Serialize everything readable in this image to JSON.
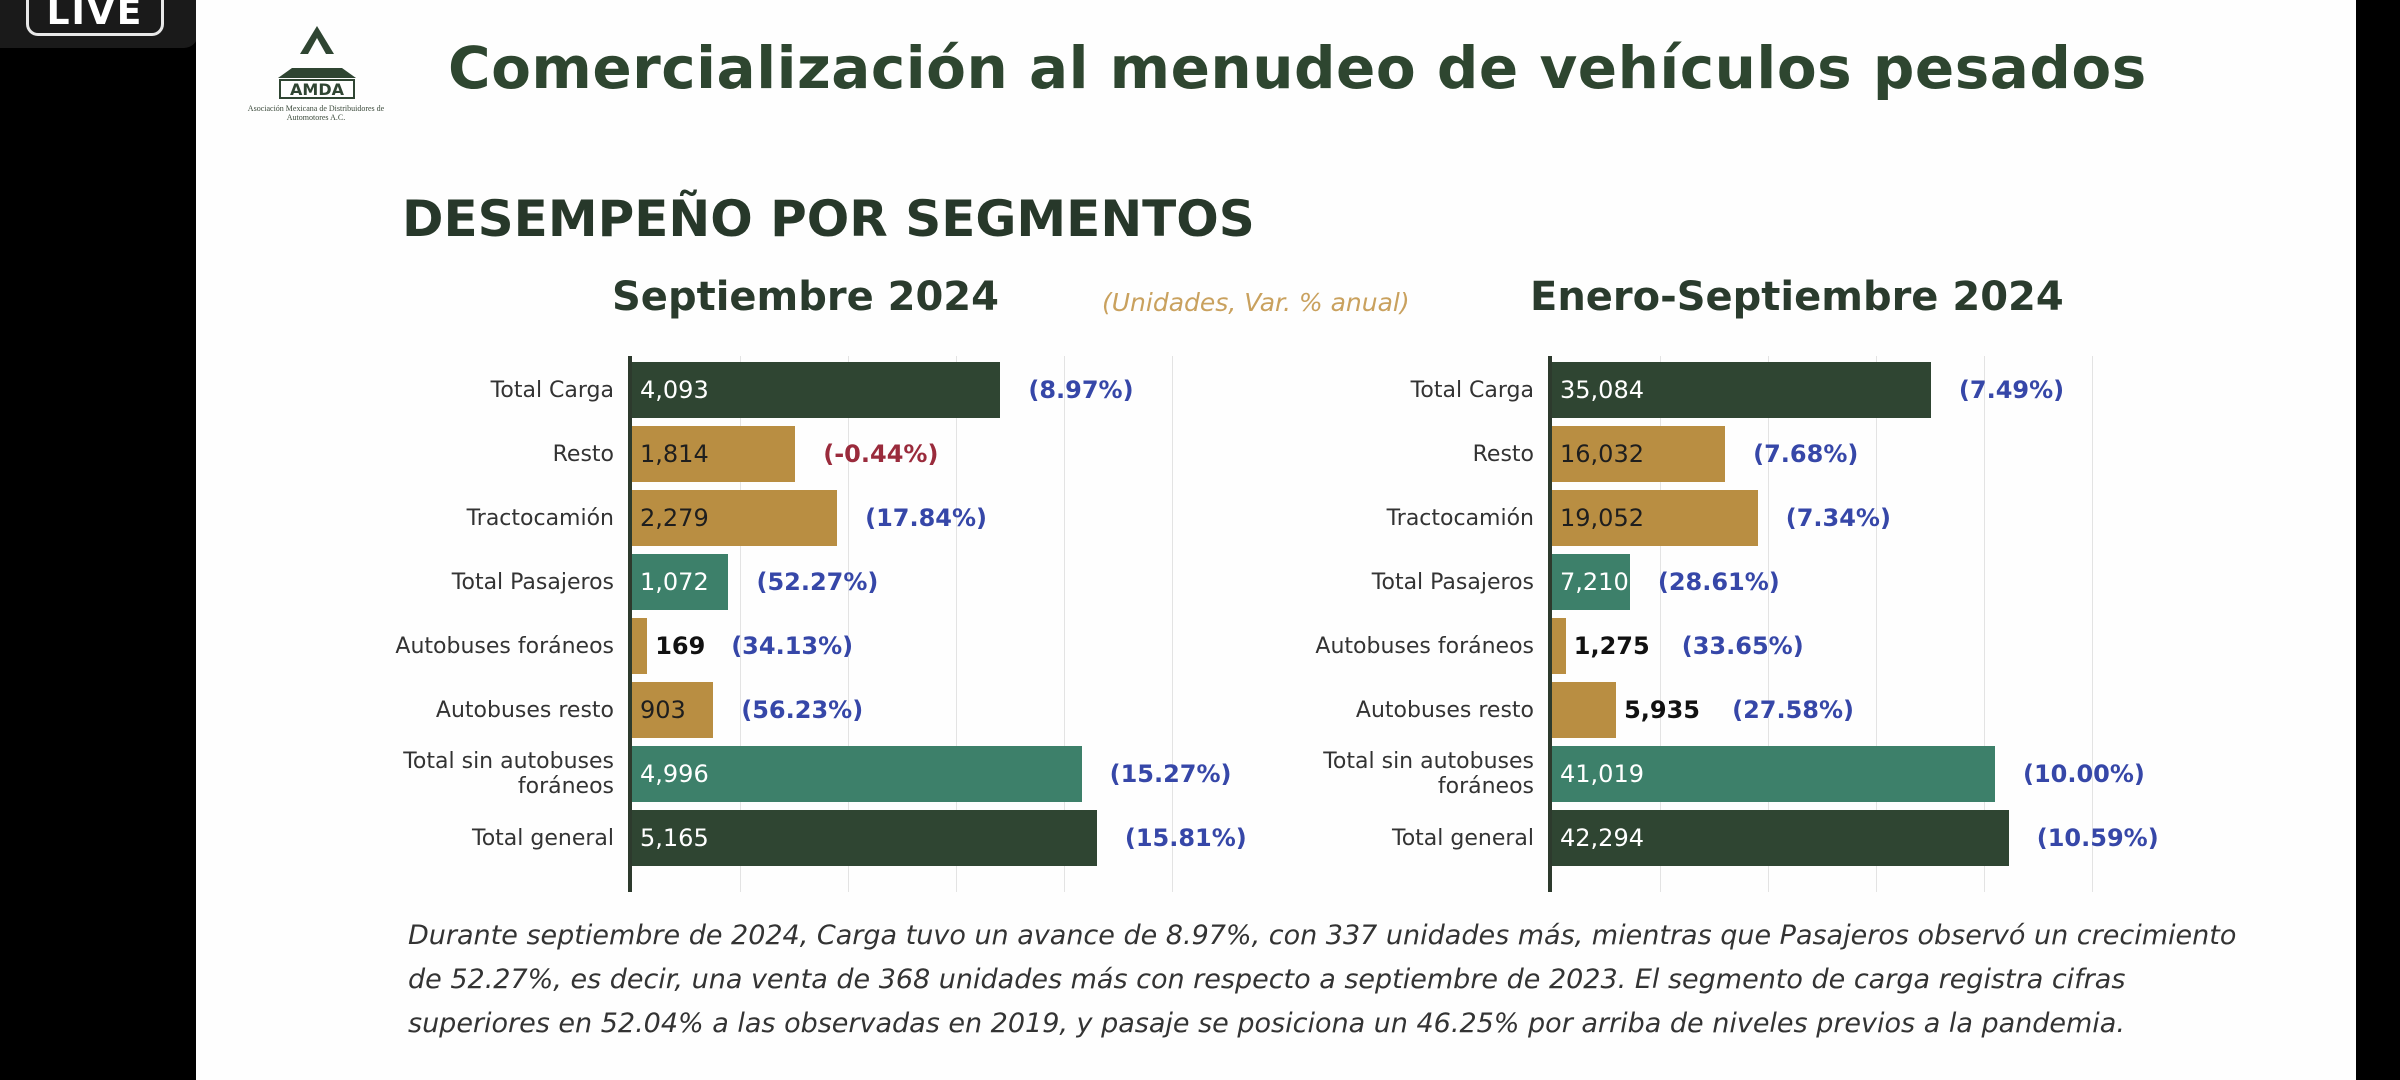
{
  "live_badge": "LIVE",
  "logo": {
    "wordmark": "AMDA",
    "org_name": "Asociación Mexicana de Distribuidores de Automotores A.C."
  },
  "title": "Comercialización al menudeo de vehículos pesados",
  "section_title": "DESEMPEÑO POR SEGMENTOS",
  "units_note": "(Unidades, Var. % anual)",
  "colors": {
    "dark_green": "#2f4532",
    "teal": "#3d806a",
    "gold": "#b98e42",
    "pct_positive": "#3647a8",
    "pct_negative": "#9a2b3c"
  },
  "chart_data": [
    {
      "type": "bar",
      "orientation": "horizontal",
      "title": "Septiembre 2024",
      "categories": [
        "Total Carga",
        "Resto",
        "Tractocamión",
        "Total Pasajeros",
        "Autobuses foráneos",
        "Autobuses resto",
        "Total sin autobuses foráneos",
        "Total general"
      ],
      "values": [
        4093,
        1814,
        2279,
        1072,
        169,
        903,
        4996,
        5165
      ],
      "labels": [
        "4,093",
        "1,814",
        "2,279",
        "1,072",
        "169",
        "903",
        "4,996",
        "5,165"
      ],
      "pct_change": [
        "(8.97%)",
        "(-0.44%)",
        "(17.84%)",
        "(52.27%)",
        "(34.13%)",
        "(56.23%)",
        "(15.27%)",
        "(15.81%)"
      ],
      "bar_colors": [
        "dark_green",
        "gold",
        "gold",
        "teal",
        "gold",
        "gold",
        "teal",
        "dark_green"
      ],
      "xlim": [
        0,
        6000
      ],
      "grid": true
    },
    {
      "type": "bar",
      "orientation": "horizontal",
      "title": "Enero-Septiembre 2024",
      "categories": [
        "Total Carga",
        "Resto",
        "Tractocamión",
        "Total Pasajeros",
        "Autobuses foráneos",
        "Autobuses resto",
        "Total sin autobuses foráneos",
        "Total general"
      ],
      "values": [
        35084,
        16032,
        19052,
        7210,
        1275,
        5935,
        41019,
        42294
      ],
      "labels": [
        "35,084",
        "16,032",
        "19,052",
        "7,210",
        "1,275",
        "5,935",
        "41,019",
        "42,294"
      ],
      "pct_change": [
        "(7.49%)",
        "(7.68%)",
        "(7.34%)",
        "(28.61%)",
        "(33.65%)",
        "(27.58%)",
        "(10.00%)",
        "(10.59%)"
      ],
      "bar_colors": [
        "dark_green",
        "gold",
        "gold",
        "teal",
        "gold",
        "gold",
        "teal",
        "dark_green"
      ],
      "xlim": [
        0,
        50000
      ],
      "grid": true
    }
  ],
  "summary": "Durante septiembre de 2024, Carga tuvo un avance de 8.97%, con 337 unidades más, mientras que Pasajeros observó un crecimiento de 52.27%, es decir, una venta de 368 unidades más con respecto a septiembre de 2023. El segmento de carga registra cifras superiores en 52.04% a las observadas en 2019, y pasaje se posiciona un 46.25% por arriba de niveles previos a la pandemia."
}
